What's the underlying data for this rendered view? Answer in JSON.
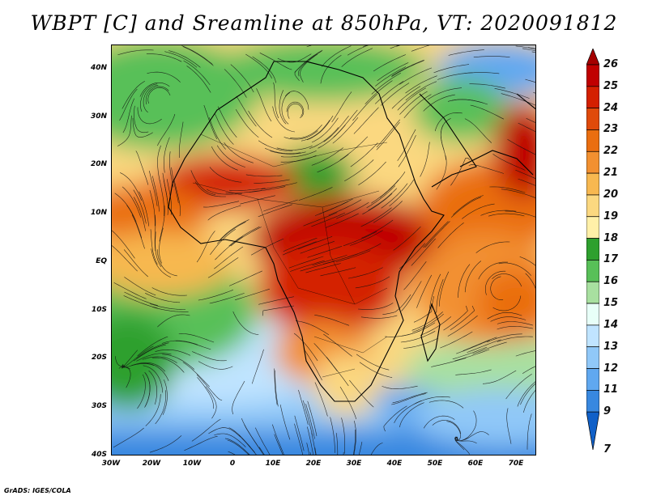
{
  "title": "WBPT [C] and Sreamline at 850hPa, VT: 2020091812",
  "credit": "GrADS: IGES/COLA",
  "map": {
    "lat_range": [
      -40,
      45
    ],
    "lon_range": [
      -30,
      75
    ],
    "lat_labels": [
      {
        "value": 40,
        "text": "40N"
      },
      {
        "value": 30,
        "text": "30N"
      },
      {
        "value": 20,
        "text": "20N"
      },
      {
        "value": 10,
        "text": "10N"
      },
      {
        "value": 0,
        "text": "EQ"
      },
      {
        "value": -10,
        "text": "10S"
      },
      {
        "value": -20,
        "text": "20S"
      },
      {
        "value": -30,
        "text": "30S"
      },
      {
        "value": -40,
        "text": "40S"
      }
    ],
    "lon_labels": [
      {
        "value": -30,
        "text": "30W"
      },
      {
        "value": -20,
        "text": "20W"
      },
      {
        "value": -10,
        "text": "10W"
      },
      {
        "value": 0,
        "text": "0"
      },
      {
        "value": 10,
        "text": "10E"
      },
      {
        "value": 20,
        "text": "20E"
      },
      {
        "value": 30,
        "text": "30E"
      },
      {
        "value": 40,
        "text": "40E"
      },
      {
        "value": 50,
        "text": "50E"
      },
      {
        "value": 60,
        "text": "60E"
      },
      {
        "value": 70,
        "text": "70E"
      }
    ]
  },
  "colorbar": {
    "labels": [
      "26",
      "25",
      "24",
      "23",
      "22",
      "21",
      "20",
      "19",
      "18",
      "17",
      "16",
      "15",
      "14",
      "13",
      "12",
      "11",
      "9",
      "7"
    ],
    "colors": [
      "#a50000",
      "#c00000",
      "#d42000",
      "#e04a0a",
      "#ea6e10",
      "#f29030",
      "#f7b850",
      "#fbd880",
      "#fff0a8",
      "#2ea02e",
      "#58c058",
      "#a8e0a0",
      "#e8fff8",
      "#c0e4ff",
      "#90c8f8",
      "#60a8f0",
      "#3888e0",
      "#1060c8"
    ]
  }
}
